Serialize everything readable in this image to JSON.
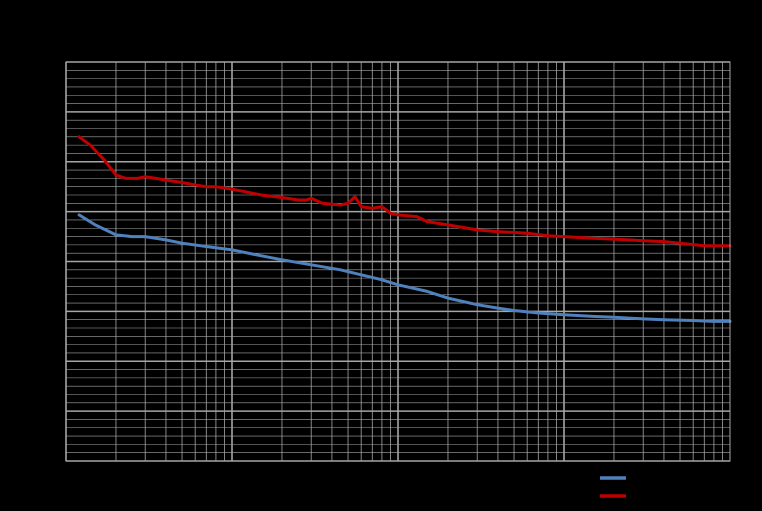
{
  "chart_data": {
    "type": "line",
    "x_scale": "log",
    "y_scale": "linear",
    "xlim": [
      1,
      10000
    ],
    "ylim": [
      0,
      24
    ],
    "grid": true,
    "legend_placement": "bottom-right",
    "background": "#000000",
    "plot_background": "#000000",
    "grid_color": "#a6a6a6",
    "series": [
      {
        "color": "#4f81bd",
        "points": [
          [
            1.2,
            14.8
          ],
          [
            1.5,
            14.2
          ],
          [
            2,
            13.6
          ],
          [
            2.5,
            13.5
          ],
          [
            3,
            13.5
          ],
          [
            4,
            13.3
          ],
          [
            5,
            13.1
          ],
          [
            7,
            12.9
          ],
          [
            10,
            12.7
          ],
          [
            14,
            12.4
          ],
          [
            20,
            12.1
          ],
          [
            30,
            11.8
          ],
          [
            45,
            11.5
          ],
          [
            60,
            11.2
          ],
          [
            80,
            10.9
          ],
          [
            100,
            10.6
          ],
          [
            150,
            10.2
          ],
          [
            200,
            9.8
          ],
          [
            300,
            9.4
          ],
          [
            400,
            9.2
          ],
          [
            500,
            9.05
          ],
          [
            700,
            8.9
          ],
          [
            1000,
            8.8
          ],
          [
            1500,
            8.7
          ],
          [
            2000,
            8.65
          ],
          [
            3000,
            8.55
          ],
          [
            4000,
            8.5
          ],
          [
            6000,
            8.45
          ],
          [
            8000,
            8.4
          ],
          [
            10000,
            8.4
          ]
        ]
      },
      {
        "color": "#c00000",
        "points": [
          [
            1.2,
            19.5
          ],
          [
            1.4,
            19.0
          ],
          [
            1.7,
            18.1
          ],
          [
            2,
            17.2
          ],
          [
            2.3,
            17.0
          ],
          [
            2.7,
            17.0
          ],
          [
            3,
            17.1
          ],
          [
            3.5,
            17.0
          ],
          [
            4,
            16.9
          ],
          [
            5,
            16.75
          ],
          [
            6,
            16.6
          ],
          [
            7,
            16.5
          ],
          [
            8,
            16.5
          ],
          [
            10,
            16.35
          ],
          [
            12,
            16.2
          ],
          [
            15,
            16.0
          ],
          [
            20,
            15.85
          ],
          [
            25,
            15.7
          ],
          [
            28,
            15.7
          ],
          [
            30,
            15.8
          ],
          [
            35,
            15.5
          ],
          [
            45,
            15.4
          ],
          [
            50,
            15.5
          ],
          [
            55,
            15.9
          ],
          [
            60,
            15.3
          ],
          [
            70,
            15.2
          ],
          [
            80,
            15.3
          ],
          [
            90,
            14.9
          ],
          [
            100,
            14.8
          ],
          [
            130,
            14.7
          ],
          [
            150,
            14.4
          ],
          [
            200,
            14.2
          ],
          [
            300,
            13.9
          ],
          [
            400,
            13.8
          ],
          [
            600,
            13.7
          ],
          [
            800,
            13.55
          ],
          [
            1000,
            13.5
          ],
          [
            1500,
            13.4
          ],
          [
            2000,
            13.35
          ],
          [
            3000,
            13.25
          ],
          [
            4000,
            13.2
          ],
          [
            5000,
            13.1
          ],
          [
            7000,
            12.95
          ],
          [
            10000,
            12.95
          ]
        ]
      }
    ]
  }
}
